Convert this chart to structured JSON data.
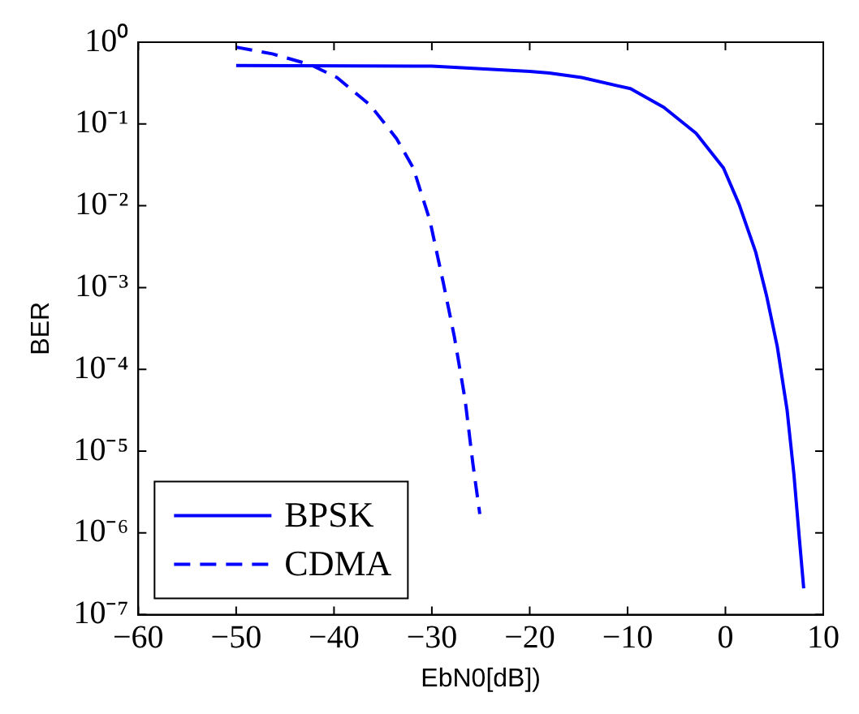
{
  "chart_data": {
    "type": "line",
    "xlabel": "EbN0[dB])",
    "ylabel": "BER",
    "log": "y",
    "grid": false,
    "legend": "bottom left",
    "marker": "none",
    "xlim": [
      -60,
      10
    ],
    "xticks": [
      -60,
      -50,
      -40,
      -30,
      -20,
      -10,
      0,
      10
    ],
    "ylim": [
      1e-07,
      1
    ],
    "yticks": [
      {
        "value": 1,
        "label": "10⁰"
      },
      {
        "value": 0.1,
        "label": "10⁻¹"
      },
      {
        "value": 0.01,
        "label": "10⁻²"
      },
      {
        "value": 0.001,
        "label": "10⁻³"
      },
      {
        "value": 0.0001,
        "label": "10⁻⁴"
      },
      {
        "value": 1e-05,
        "label": "10⁻⁵"
      },
      {
        "value": 1e-06,
        "label": "10⁻⁶"
      },
      {
        "value": 1e-07,
        "label": "10⁻⁷"
      }
    ],
    "series": [
      {
        "name": "BPSK",
        "color": "#0000ff",
        "line_style": "solid",
        "x": [
          -50,
          -30,
          -20,
          -18,
          -14.7,
          -9.7,
          -6.3,
          -3,
          -0.2,
          1.4,
          3.1,
          4.2,
          5.3,
          6.3,
          7,
          7.55,
          8
        ],
        "values": [
          0.52,
          0.51,
          0.44,
          0.42,
          0.37,
          0.27,
          0.16,
          0.077,
          0.029,
          0.0104,
          0.0027,
          0.0008,
          0.00019,
          3.2e-05,
          5.2e-06,
          8.7e-07,
          2.1e-07
        ]
      },
      {
        "name": "CDMA",
        "color": "#0000ff",
        "line_style": "dashed",
        "x": [
          -50,
          -46.3,
          -42.4,
          -39.7,
          -36.3,
          -33.6,
          -31.9,
          -30.2,
          -28.8,
          -27.7,
          -26.6,
          -25.8,
          -25.1
        ],
        "values": [
          0.87,
          0.72,
          0.53,
          0.37,
          0.17,
          0.066,
          0.029,
          0.0066,
          0.0011,
          0.00025,
          4.2e-05,
          6.9e-06,
          1.7e-06
        ]
      }
    ]
  }
}
